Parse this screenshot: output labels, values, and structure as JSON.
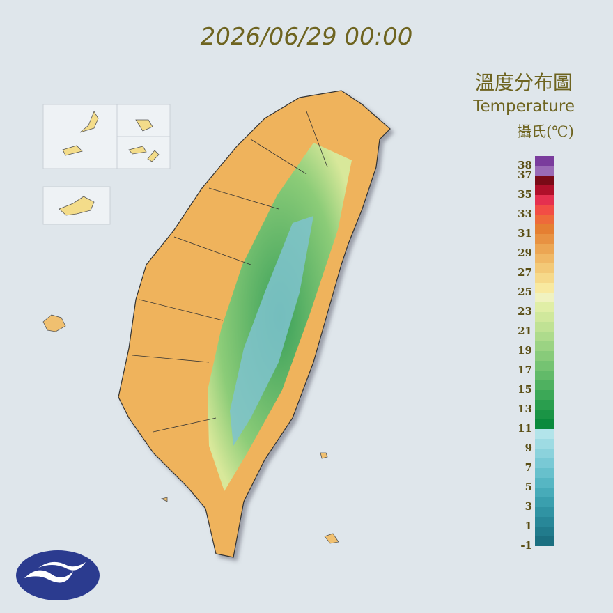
{
  "header": {
    "datetime": "2026/06/29 00:00"
  },
  "legend": {
    "title": "溫度分布圖",
    "subtitle": "Temperature",
    "unit": "攝氏(℃)",
    "ticks": [
      38,
      37,
      35,
      33,
      31,
      29,
      27,
      25,
      23,
      21,
      19,
      17,
      15,
      13,
      11,
      9,
      7,
      5,
      3,
      1,
      -1
    ],
    "colors": [
      "#1b6f80",
      "#217b8c",
      "#288798",
      "#3093a3",
      "#3a9fae",
      "#47abb9",
      "#56b6c3",
      "#67c0cc",
      "#79c9d5",
      "#8bd2dc",
      "#9edbe3",
      "#b2e4ea",
      "#0a8a3c",
      "#1a9445",
      "#2a9e4e",
      "#3ca857",
      "#4fb160",
      "#62ba69",
      "#75c372",
      "#88cb7a",
      "#9bd383",
      "#aedb8c",
      "#c0e294",
      "#d0e89c",
      "#e0eea6",
      "#f0f2c0",
      "#f8e9a0",
      "#f6d98a",
      "#f3c977",
      "#f0b865",
      "#eca653",
      "#e89242",
      "#e57f32",
      "#ee6a3a",
      "#f24d45",
      "#e5304f",
      "#b0102a",
      "#7a0a16",
      "#9a6ab5",
      "#7a3c9c"
    ]
  }
}
